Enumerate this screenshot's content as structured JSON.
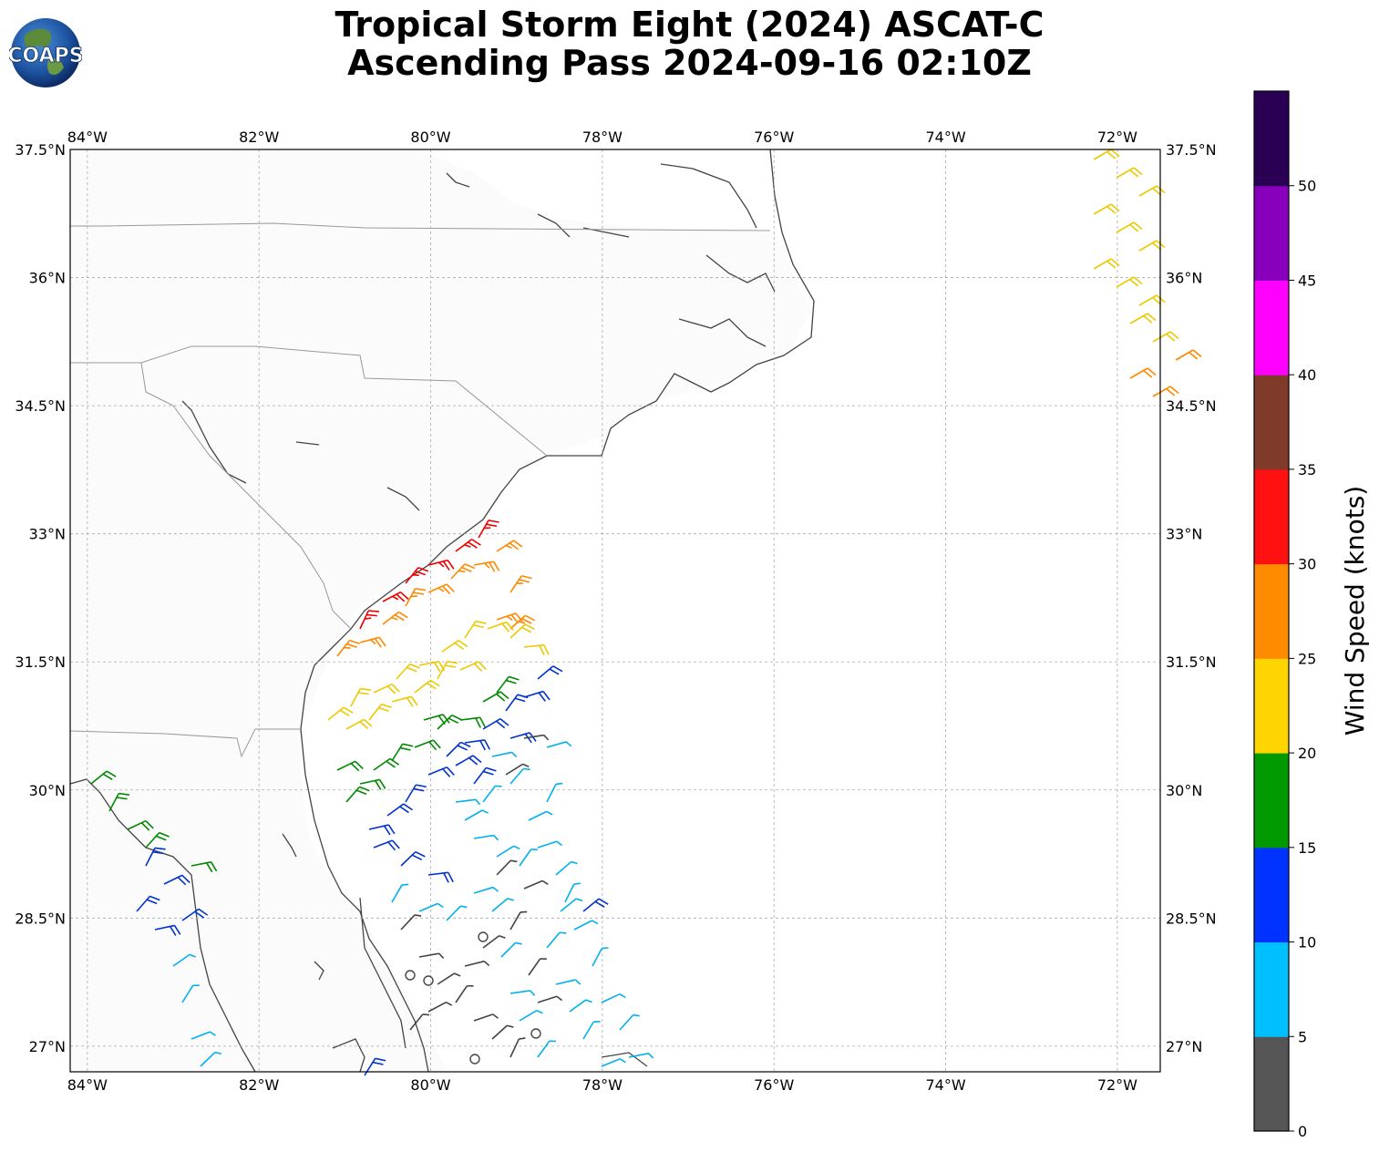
{
  "header": {
    "title_line1": "Tropical Storm Eight (2024) ASCAT-C",
    "title_line2": "Ascending Pass 2024-09-16 02:10Z",
    "logo_text": "COAPS"
  },
  "map": {
    "lon_ticks": [
      "84°W",
      "82°W",
      "80°W",
      "78°W",
      "76°W",
      "74°W",
      "72°W"
    ],
    "lat_ticks": [
      "37.5°N",
      "36°N",
      "34.5°N",
      "33°N",
      "31.5°N",
      "30°N",
      "28.5°N",
      "27°N"
    ],
    "gridlines": true,
    "lon_range": [
      -84.2,
      -71.5
    ],
    "lat_range": [
      26.7,
      37.5
    ]
  },
  "colorbar": {
    "label": "Wind Speed (knots)",
    "ticks": [
      "0",
      "5",
      "10",
      "15",
      "20",
      "25",
      "30",
      "35",
      "40",
      "45",
      "50"
    ],
    "colors": [
      "#555555",
      "#00bfff",
      "#0033ff",
      "#009900",
      "#ffd500",
      "#ff8c00",
      "#ff1111",
      "#7f3a2a",
      "#ff00ff",
      "#8800bb",
      "#2a0055"
    ]
  },
  "barb_colors": {
    "0-5": "#444444",
    "5-10": "#00b0ee",
    "10-15": "#0033cc",
    "15-20": "#008800",
    "20-25": "#eec900",
    "25-30": "#ff8800",
    "30-35": "#ee0000"
  }
}
